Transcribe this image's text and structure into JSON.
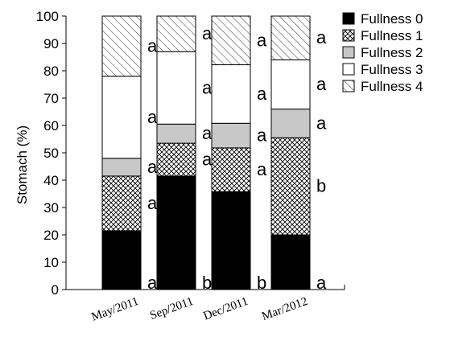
{
  "chart_data": {
    "type": "bar",
    "stacked": true,
    "title": "",
    "xlabel": "",
    "ylabel": "Stomach (%)",
    "ylim": [
      0,
      100
    ],
    "yticks": [
      "0",
      "10",
      "20",
      "30",
      "40",
      "50",
      "60",
      "70",
      "80",
      "90",
      "100"
    ],
    "categories": [
      "May/2011",
      "Sep/2011",
      "Dec/2011",
      "Mar/2012"
    ],
    "legend_position": "top-right",
    "series": [
      {
        "name": "Fullness 0",
        "fill": "#000000",
        "pattern": "solid",
        "values": [
          21.5,
          41.5,
          35.8,
          20.0
        ],
        "letters": [
          "a",
          "b",
          "b",
          "a"
        ]
      },
      {
        "name": "Fullness 1",
        "fill": "#ffffff",
        "pattern": "crosshatch",
        "values": [
          20.0,
          12.0,
          16.0,
          35.5
        ],
        "letters": [
          "a",
          "a",
          "a",
          "b"
        ]
      },
      {
        "name": "Fullness 2",
        "fill": "#c8c8c8",
        "pattern": "solid",
        "values": [
          6.5,
          7.0,
          9.0,
          10.5
        ],
        "letters": [
          "a",
          "a",
          "a",
          "a"
        ]
      },
      {
        "name": "Fullness 3",
        "fill": "#ffffff",
        "pattern": "solid",
        "values": [
          30.0,
          26.5,
          21.4,
          18.0
        ],
        "letters": [
          "a",
          "a",
          "a",
          "a"
        ]
      },
      {
        "name": "Fullness 4",
        "fill": "#ffffff",
        "pattern": "diagonal",
        "values": [
          22.0,
          13.0,
          17.8,
          16.0
        ],
        "letters": [
          "a",
          "a",
          "a",
          "a"
        ]
      }
    ]
  }
}
